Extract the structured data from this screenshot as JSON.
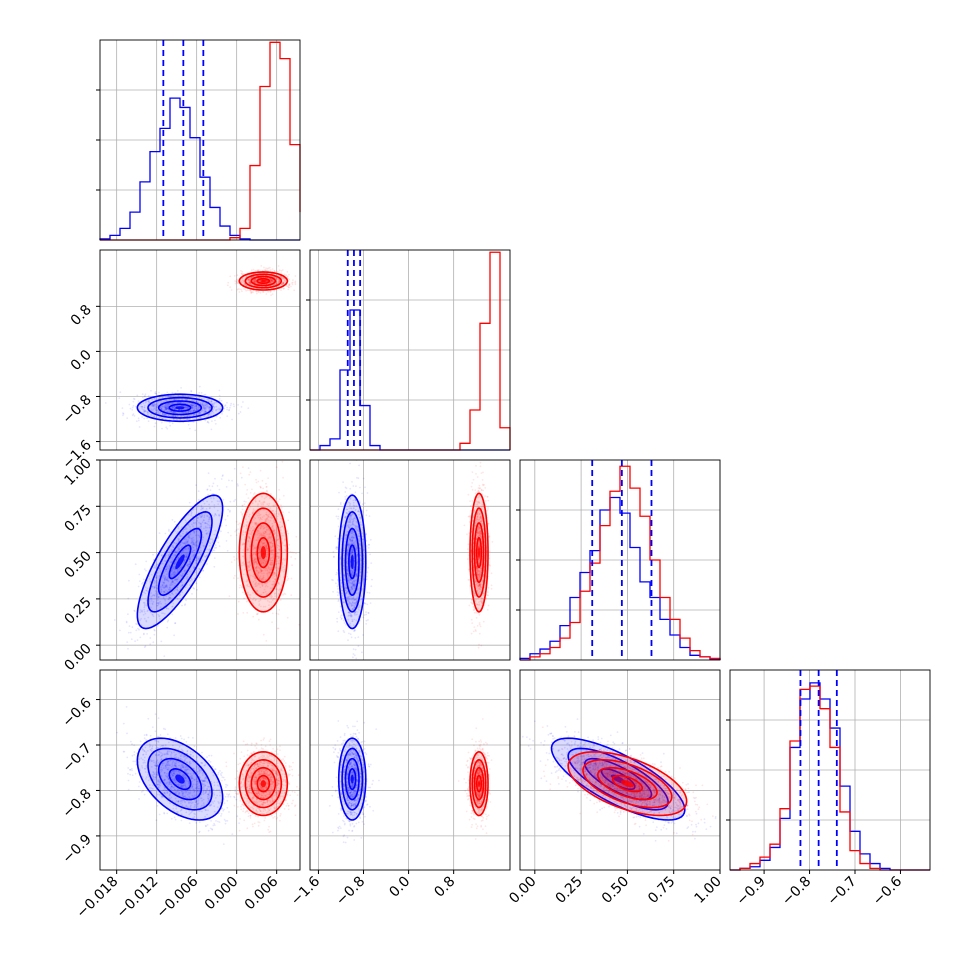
{
  "chart_data": {
    "type": "corner",
    "series": [
      {
        "color": "#0000ff"
      },
      {
        "color": "#ff0000"
      }
    ],
    "params": [
      {
        "range": [
          -0.0205,
          0.0095
        ],
        "ticks": [
          -0.018,
          -0.012,
          -0.006,
          0.0,
          0.006
        ],
        "tick_labels": [
          "−0.018",
          "−0.012",
          "−0.006",
          "0.000",
          "0.006"
        ]
      },
      {
        "range": [
          -1.75,
          1.8
        ],
        "ticks": [
          -1.6,
          -0.8,
          0.0,
          0.8
        ],
        "tick_labels": [
          "−1.6",
          "−0.8",
          "0.0",
          "0.8"
        ]
      },
      {
        "range": [
          -0.08,
          1.0
        ],
        "ticks": [
          0.0,
          0.25,
          0.5,
          0.75,
          1.0
        ],
        "tick_labels": [
          "0.00",
          "0.25",
          "0.50",
          "0.75",
          "1.00"
        ]
      },
      {
        "range": [
          -0.975,
          -0.535
        ],
        "ticks": [
          -0.9,
          -0.8,
          -0.7,
          -0.6
        ],
        "tick_labels": [
          "−0.9",
          "−0.8",
          "−0.7",
          "−0.6"
        ]
      }
    ],
    "diagonal": [
      {
        "bins": [
          -0.0205,
          -0.019,
          -0.0175,
          -0.016,
          -0.0145,
          -0.013,
          -0.0115,
          -0.01,
          -0.0085,
          -0.007,
          -0.0055,
          -0.004,
          -0.0025,
          -0.001,
          0.0005,
          0.002,
          0.0035,
          0.005,
          0.0065,
          0.008,
          0.0095
        ],
        "hists": [
          [
            0.005,
            0.02,
            0.05,
            0.12,
            0.25,
            0.38,
            0.48,
            0.61,
            0.57,
            0.44,
            0.27,
            0.14,
            0.06,
            0.02,
            0.005,
            0,
            0,
            0,
            0,
            0
          ],
          [
            0,
            0,
            0,
            0,
            0,
            0,
            0,
            0,
            0,
            0,
            0,
            0,
            0,
            0.01,
            0.05,
            0.32,
            0.66,
            0.85,
            0.78,
            0.41,
            0.12
          ]
        ],
        "quantiles": [
          -0.011,
          -0.008,
          -0.005
        ],
        "ymax": 0.86
      },
      {
        "bins": [
          -1.75,
          -1.5725,
          -1.395,
          -1.2175,
          -1.04,
          -0.8625,
          -0.685,
          -0.5075,
          -0.33,
          -0.1525,
          0.025,
          0.2025,
          0.38,
          0.5575,
          0.735,
          0.9125,
          1.09,
          1.2675,
          1.445,
          1.6225,
          1.8
        ],
        "hists": [
          [
            0,
            0.02,
            0.05,
            0.36,
            0.63,
            0.2,
            0.02,
            0,
            0,
            0,
            0,
            0,
            0,
            0,
            0,
            0,
            0,
            0,
            0,
            0
          ],
          [
            0,
            0,
            0,
            0,
            0,
            0,
            0,
            0,
            0,
            0,
            0,
            0,
            0,
            0,
            0,
            0.03,
            0.18,
            0.57,
            0.89,
            0.1
          ]
        ],
        "quantiles": [
          -1.08,
          -0.97,
          -0.86
        ],
        "ymax": 0.9
      },
      {
        "bins": [
          -0.08,
          -0.026,
          0.028,
          0.082,
          0.136,
          0.19,
          0.244,
          0.298,
          0.352,
          0.406,
          0.46,
          0.514,
          0.568,
          0.622,
          0.676,
          0.73,
          0.784,
          0.838,
          0.892,
          0.946,
          1.0
        ],
        "hists": [
          [
            0.005,
            0.02,
            0.035,
            0.06,
            0.11,
            0.2,
            0.28,
            0.35,
            0.48,
            0.52,
            0.47,
            0.36,
            0.25,
            0.2,
            0.13,
            0.08,
            0.04,
            0.015,
            0.01,
            0.003
          ],
          [
            0,
            0.01,
            0.02,
            0.04,
            0.07,
            0.12,
            0.22,
            0.31,
            0.43,
            0.54,
            0.62,
            0.55,
            0.46,
            0.32,
            0.2,
            0.13,
            0.07,
            0.03,
            0.01,
            0.005
          ]
        ],
        "quantiles": [
          0.31,
          0.47,
          0.63
        ],
        "ymax": 0.64
      },
      {
        "bins": [
          -0.975,
          -0.953,
          -0.931,
          -0.909,
          -0.887,
          -0.865,
          -0.843,
          -0.821,
          -0.799,
          -0.777,
          -0.755,
          -0.733,
          -0.711,
          -0.689,
          -0.667,
          -0.645,
          -0.623,
          -0.601,
          -0.579,
          -0.557,
          -0.535
        ],
        "hists": [
          [
            0,
            0.005,
            0.01,
            0.03,
            0.07,
            0.16,
            0.38,
            0.53,
            0.58,
            0.53,
            0.44,
            0.26,
            0.12,
            0.05,
            0.02,
            0.005,
            0,
            0,
            0,
            0
          ],
          [
            0,
            0.005,
            0.02,
            0.04,
            0.08,
            0.19,
            0.4,
            0.56,
            0.57,
            0.5,
            0.38,
            0.18,
            0.06,
            0.02,
            0.005,
            0,
            0,
            0,
            0,
            0
          ]
        ],
        "quantiles": [
          -0.82,
          -0.78,
          -0.74
        ],
        "ymax": 0.62
      }
    ],
    "clusters": [
      {
        "mean": [
          -0.0085,
          -1.0,
          0.45,
          -0.775
        ],
        "sd": [
          0.0032,
          0.12,
          0.18,
          0.045
        ],
        "corr": {
          "0-2": 0.8,
          "0-3": -0.45,
          "2-3": -0.75
        }
      },
      {
        "mean": [
          0.004,
          1.25,
          0.5,
          -0.785
        ],
        "sd": [
          0.0018,
          0.08,
          0.16,
          0.035
        ],
        "corr": {
          "2-3": -0.55
        }
      }
    ],
    "grid": true
  }
}
